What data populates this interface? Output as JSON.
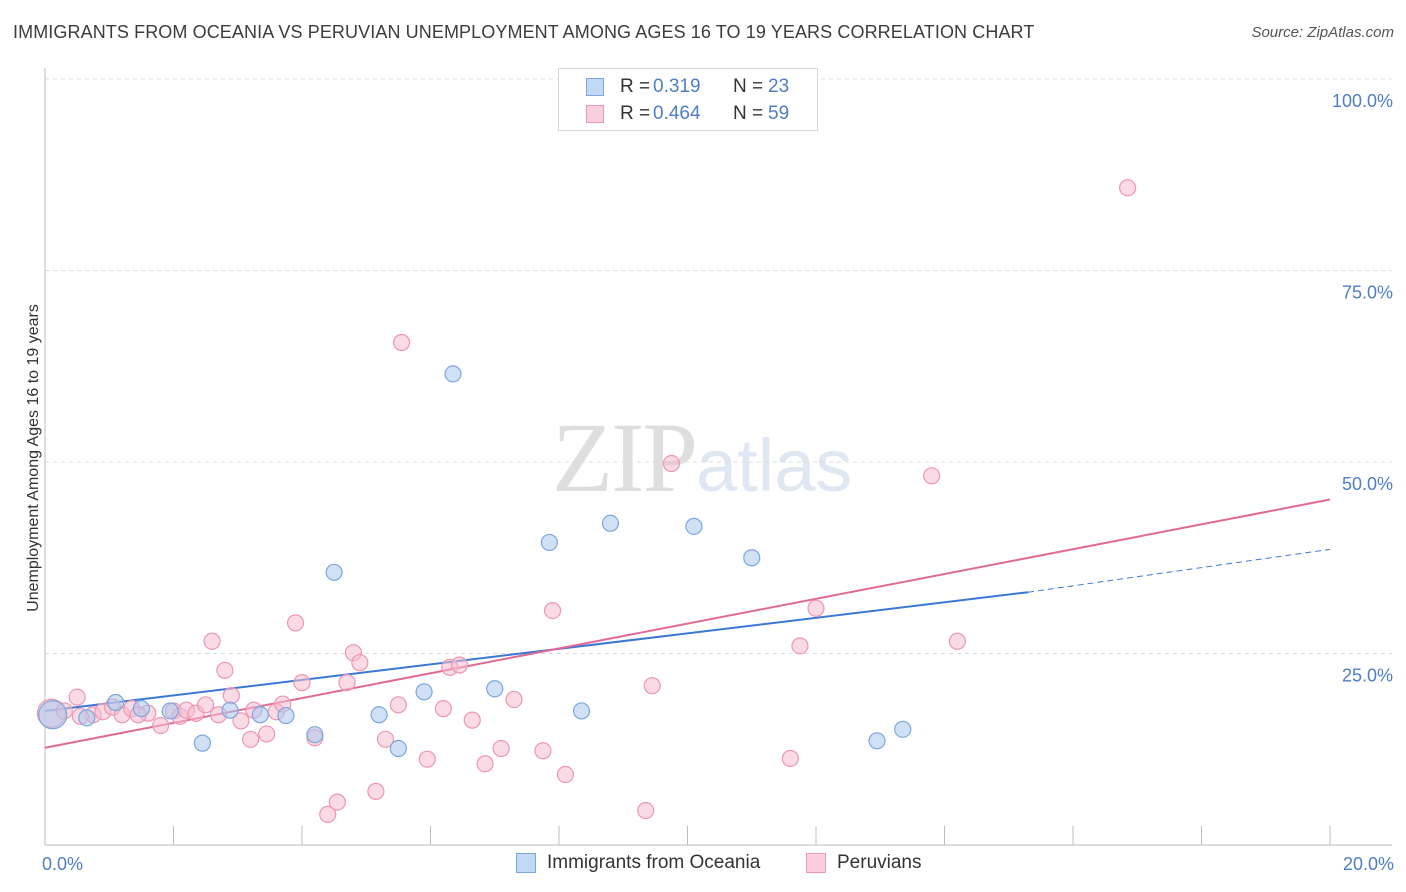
{
  "title": "IMMIGRANTS FROM OCEANIA VS PERUVIAN UNEMPLOYMENT AMONG AGES 16 TO 19 YEARS CORRELATION CHART",
  "source": "Source: ZipAtlas.com",
  "watermark": {
    "zip": "ZIP",
    "atlas": "atlas"
  },
  "legend": {
    "rows": [
      {
        "r_label": "R =",
        "r_value": "0.319",
        "n_label": "N =",
        "n_value": "23"
      },
      {
        "r_label": "R =",
        "r_value": "0.464",
        "n_label": "N =",
        "n_value": "59"
      }
    ]
  },
  "colors": {
    "blue_fill": "#a9c8ef",
    "blue_stroke": "#7aa7e0",
    "blue_line": "#3a78d4",
    "pink_fill": "#f6bccf",
    "pink_stroke": "#ee96b4",
    "pink_line": "#e06a96",
    "tick_text": "#4e7ec5",
    "grid": "#dcdcdc"
  },
  "chart_data": {
    "type": "scatter",
    "title": "IMMIGRANTS FROM OCEANIA VS PERUVIAN UNEMPLOYMENT AMONG AGES 16 TO 19 YEARS CORRELATION CHART",
    "xlabel": "",
    "ylabel": "Unemployment Among Ages 16 to 19 years",
    "xlim": [
      0,
      20
    ],
    "ylim": [
      0,
      100
    ],
    "x_tick_labels": [
      {
        "value": 0,
        "label": "0.0%"
      },
      {
        "value": 20,
        "label": "20.0%"
      }
    ],
    "y_tick_labels": [
      {
        "value": 25,
        "label": "25.0%"
      },
      {
        "value": 50,
        "label": "50.0%"
      },
      {
        "value": 75,
        "label": "75.0%"
      },
      {
        "value": 100,
        "label": "100.0%"
      }
    ],
    "grid": true,
    "legend_position": "top-center",
    "series": [
      {
        "name": "Immigrants from Oceania",
        "color": "#a9c8ef",
        "r": 0.319,
        "n": 23,
        "points": [
          {
            "x": 0.12,
            "y": 17.0,
            "size": "large"
          },
          {
            "x": 0.65,
            "y": 16.6
          },
          {
            "x": 1.5,
            "y": 17.8
          },
          {
            "x": 1.95,
            "y": 17.5
          },
          {
            "x": 2.45,
            "y": 13.3
          },
          {
            "x": 2.88,
            "y": 17.6
          },
          {
            "x": 3.35,
            "y": 17.0
          },
          {
            "x": 3.75,
            "y": 16.9
          },
          {
            "x": 4.2,
            "y": 14.4
          },
          {
            "x": 4.5,
            "y": 35.6
          },
          {
            "x": 5.2,
            "y": 17.0
          },
          {
            "x": 5.5,
            "y": 12.6
          },
          {
            "x": 5.9,
            "y": 20.0
          },
          {
            "x": 6.35,
            "y": 61.5
          },
          {
            "x": 7.0,
            "y": 20.4
          },
          {
            "x": 7.85,
            "y": 39.5
          },
          {
            "x": 8.35,
            "y": 17.5
          },
          {
            "x": 8.8,
            "y": 42.0
          },
          {
            "x": 10.1,
            "y": 41.6
          },
          {
            "x": 11.0,
            "y": 37.5
          },
          {
            "x": 12.95,
            "y": 13.6
          },
          {
            "x": 13.35,
            "y": 15.1
          },
          {
            "x": 1.1,
            "y": 18.6
          }
        ],
        "trend": {
          "x0": 0,
          "y0": 17.5,
          "x1": 15.3,
          "y1": 33.0,
          "dashed_to_x": 20,
          "dashed_to_y": 38.6
        }
      },
      {
        "name": "Peruvians",
        "color": "#f6bccf",
        "r": 0.464,
        "n": 59,
        "points": [
          {
            "x": 0.1,
            "y": 17.2,
            "size": "large"
          },
          {
            "x": 0.3,
            "y": 17.5
          },
          {
            "x": 0.5,
            "y": 19.3
          },
          {
            "x": 0.75,
            "y": 17.0
          },
          {
            "x": 0.9,
            "y": 17.4
          },
          {
            "x": 1.05,
            "y": 18.0
          },
          {
            "x": 1.2,
            "y": 17.0
          },
          {
            "x": 1.35,
            "y": 17.8
          },
          {
            "x": 1.6,
            "y": 17.2
          },
          {
            "x": 1.8,
            "y": 15.6
          },
          {
            "x": 2.0,
            "y": 17.5
          },
          {
            "x": 2.1,
            "y": 16.8
          },
          {
            "x": 2.2,
            "y": 17.6
          },
          {
            "x": 2.35,
            "y": 17.2
          },
          {
            "x": 2.5,
            "y": 18.3
          },
          {
            "x": 2.6,
            "y": 26.6
          },
          {
            "x": 2.8,
            "y": 22.8
          },
          {
            "x": 2.9,
            "y": 19.5
          },
          {
            "x": 3.05,
            "y": 16.2
          },
          {
            "x": 3.2,
            "y": 13.8
          },
          {
            "x": 3.45,
            "y": 14.5
          },
          {
            "x": 3.6,
            "y": 17.4
          },
          {
            "x": 3.7,
            "y": 18.4
          },
          {
            "x": 3.9,
            "y": 29.0
          },
          {
            "x": 4.0,
            "y": 21.2
          },
          {
            "x": 4.2,
            "y": 14.0
          },
          {
            "x": 4.4,
            "y": 4.0
          },
          {
            "x": 4.55,
            "y": 5.6
          },
          {
            "x": 4.7,
            "y": 21.2
          },
          {
            "x": 4.8,
            "y": 25.1
          },
          {
            "x": 4.9,
            "y": 23.8
          },
          {
            "x": 5.15,
            "y": 7.0
          },
          {
            "x": 5.3,
            "y": 13.8
          },
          {
            "x": 5.5,
            "y": 18.3
          },
          {
            "x": 5.55,
            "y": 65.6
          },
          {
            "x": 5.95,
            "y": 11.2
          },
          {
            "x": 6.2,
            "y": 17.8
          },
          {
            "x": 6.3,
            "y": 23.2
          },
          {
            "x": 6.45,
            "y": 23.5
          },
          {
            "x": 6.65,
            "y": 16.3
          },
          {
            "x": 6.85,
            "y": 10.6
          },
          {
            "x": 7.1,
            "y": 12.6
          },
          {
            "x": 7.3,
            "y": 19.0
          },
          {
            "x": 7.75,
            "y": 12.3
          },
          {
            "x": 7.9,
            "y": 30.6
          },
          {
            "x": 8.1,
            "y": 9.2
          },
          {
            "x": 9.35,
            "y": 4.5
          },
          {
            "x": 9.45,
            "y": 20.8
          },
          {
            "x": 9.75,
            "y": 49.8
          },
          {
            "x": 11.6,
            "y": 11.3
          },
          {
            "x": 11.75,
            "y": 26.0
          },
          {
            "x": 12.0,
            "y": 30.9
          },
          {
            "x": 13.8,
            "y": 48.2
          },
          {
            "x": 14.2,
            "y": 26.6
          },
          {
            "x": 16.85,
            "y": 85.8
          },
          {
            "x": 0.55,
            "y": 16.8
          },
          {
            "x": 1.45,
            "y": 17.0
          },
          {
            "x": 2.7,
            "y": 17.0
          },
          {
            "x": 3.25,
            "y": 17.6
          }
        ],
        "trend": {
          "x0": 0,
          "y0": 12.7,
          "x1": 20,
          "y1": 45.1
        }
      }
    ]
  },
  "bottom_legend": [
    {
      "label": "Immigrants from Oceania"
    },
    {
      "label": "Peruvians"
    }
  ]
}
